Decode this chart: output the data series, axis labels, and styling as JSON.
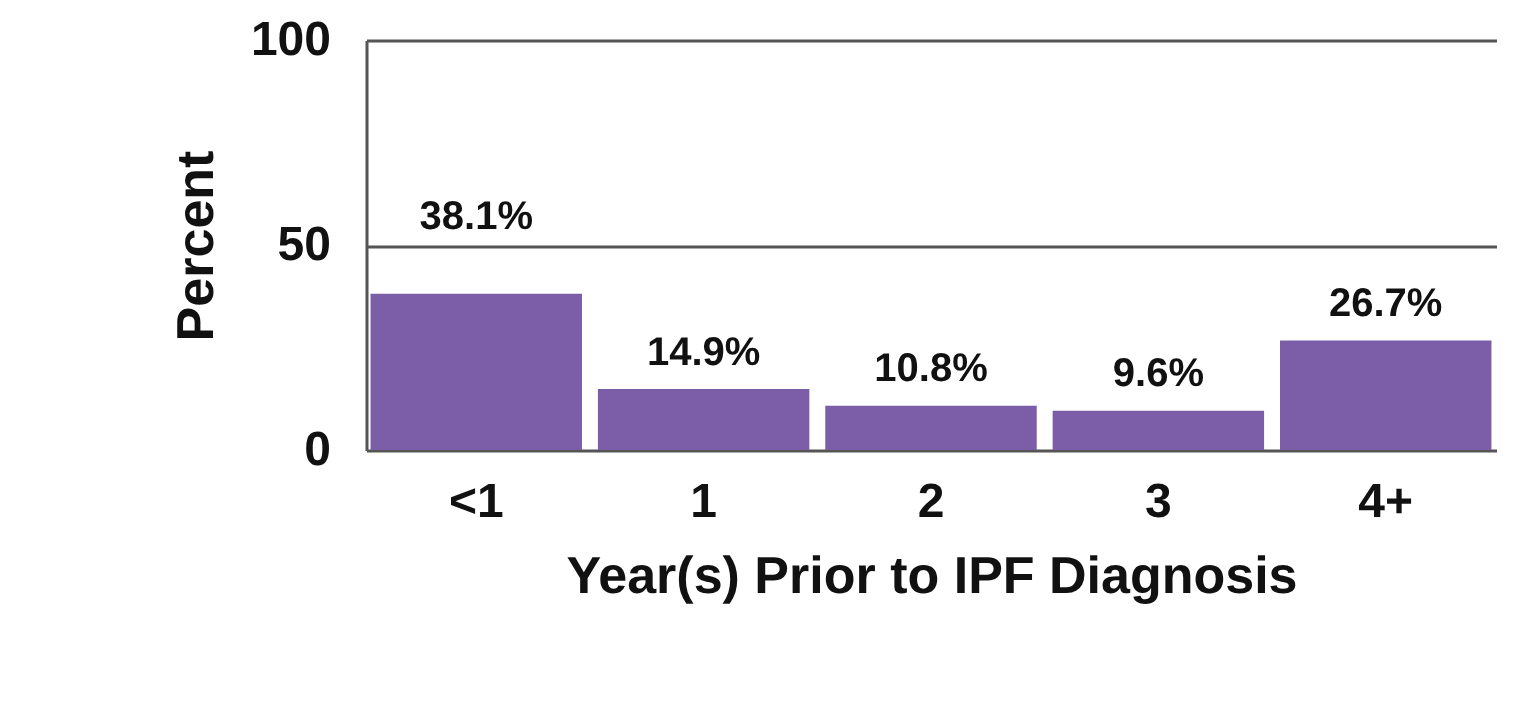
{
  "chart_data": {
    "type": "bar",
    "xlabel": "Year(s) Prior to IPF Diagnosis",
    "ylabel": "Percent",
    "categories": [
      "<1",
      "1",
      "2",
      "3",
      "4+"
    ],
    "values": [
      38.1,
      14.9,
      10.8,
      9.6,
      26.7
    ],
    "value_labels": [
      "38.1%",
      "14.9%",
      "10.8%",
      "9.6%",
      "26.7%"
    ],
    "color": "#7b5ea7",
    "ylim": [
      0,
      100
    ],
    "yticks": [
      0,
      50,
      100
    ],
    "grid": "y"
  }
}
